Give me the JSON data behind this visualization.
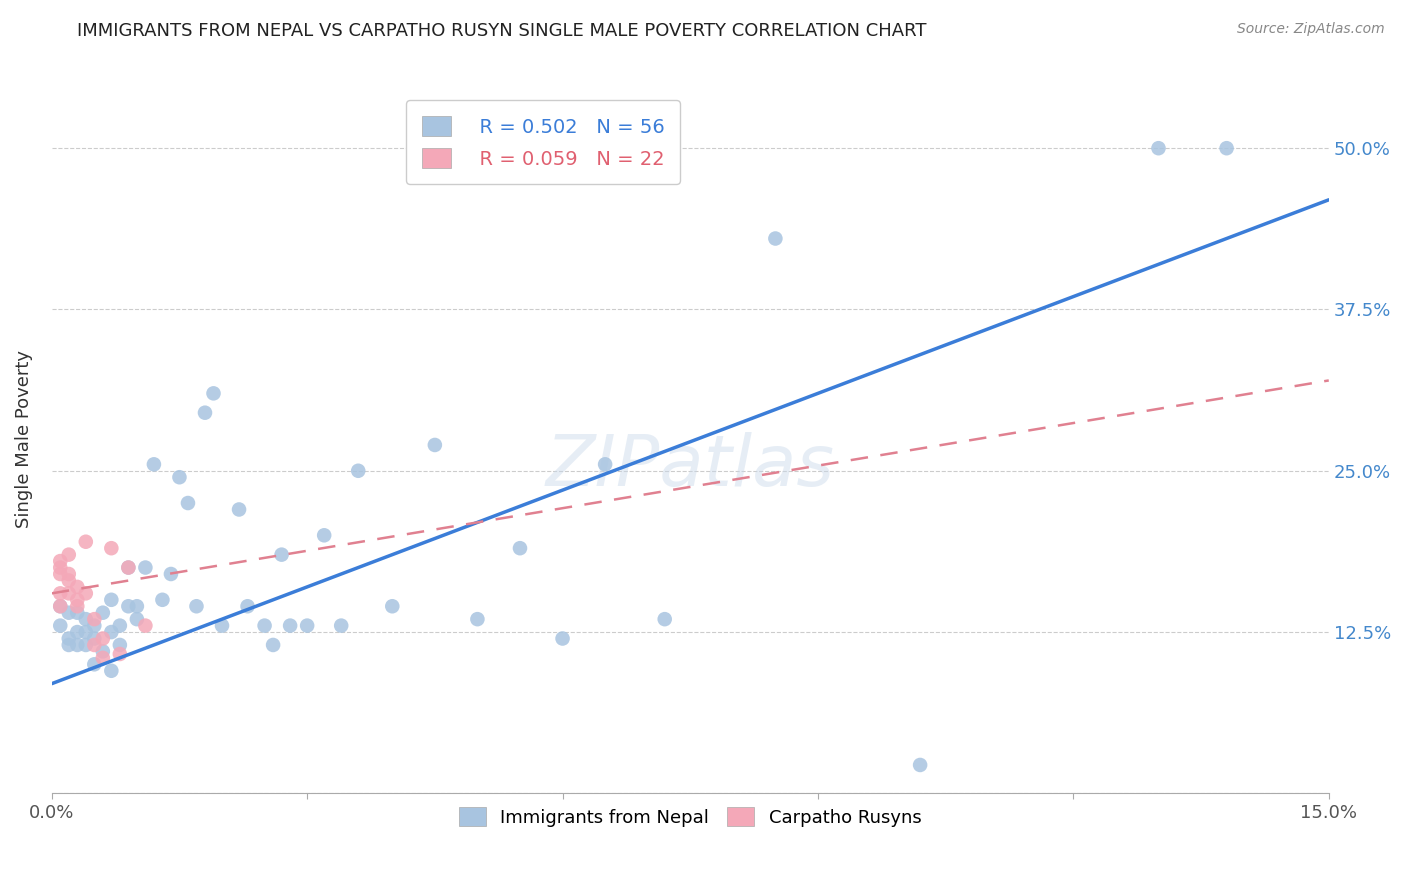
{
  "title": "IMMIGRANTS FROM NEPAL VS CARPATHO RUSYN SINGLE MALE POVERTY CORRELATION CHART",
  "source": "Source: ZipAtlas.com",
  "ylabel": "Single Male Poverty",
  "xmin": 0.0,
  "xmax": 0.15,
  "ymin": 0.0,
  "ymax": 0.55,
  "x_ticks": [
    0.0,
    0.03,
    0.06,
    0.09,
    0.12,
    0.15
  ],
  "y_ticks": [
    0.0,
    0.125,
    0.25,
    0.375,
    0.5
  ],
  "y_tick_labels_right": [
    "",
    "12.5%",
    "25.0%",
    "37.5%",
    "50.0%"
  ],
  "nepal_R": 0.502,
  "nepal_N": 56,
  "rusyn_R": 0.059,
  "rusyn_N": 22,
  "nepal_color": "#a8c4e0",
  "rusyn_color": "#f4a8b8",
  "nepal_line_color": "#3b7dd8",
  "rusyn_line_color": "#e08090",
  "nepal_line_x0": 0.0,
  "nepal_line_y0": 0.085,
  "nepal_line_x1": 0.15,
  "nepal_line_y1": 0.46,
  "rusyn_line_x0": 0.0,
  "rusyn_line_y0": 0.155,
  "rusyn_line_x1": 0.15,
  "rusyn_line_y1": 0.32,
  "nepal_x": [
    0.001,
    0.001,
    0.002,
    0.002,
    0.002,
    0.003,
    0.003,
    0.003,
    0.004,
    0.004,
    0.004,
    0.005,
    0.005,
    0.005,
    0.006,
    0.006,
    0.007,
    0.007,
    0.007,
    0.008,
    0.008,
    0.009,
    0.009,
    0.01,
    0.01,
    0.011,
    0.012,
    0.013,
    0.014,
    0.015,
    0.016,
    0.017,
    0.018,
    0.019,
    0.02,
    0.022,
    0.023,
    0.025,
    0.026,
    0.027,
    0.028,
    0.03,
    0.032,
    0.034,
    0.036,
    0.04,
    0.045,
    0.05,
    0.055,
    0.06,
    0.065,
    0.072,
    0.085,
    0.102,
    0.13,
    0.138
  ],
  "nepal_y": [
    0.13,
    0.145,
    0.12,
    0.115,
    0.14,
    0.115,
    0.125,
    0.14,
    0.125,
    0.115,
    0.135,
    0.1,
    0.12,
    0.13,
    0.11,
    0.14,
    0.095,
    0.125,
    0.15,
    0.115,
    0.13,
    0.145,
    0.175,
    0.135,
    0.145,
    0.175,
    0.255,
    0.15,
    0.17,
    0.245,
    0.225,
    0.145,
    0.295,
    0.31,
    0.13,
    0.22,
    0.145,
    0.13,
    0.115,
    0.185,
    0.13,
    0.13,
    0.2,
    0.13,
    0.25,
    0.145,
    0.27,
    0.135,
    0.19,
    0.12,
    0.255,
    0.135,
    0.43,
    0.022,
    0.5,
    0.5
  ],
  "rusyn_x": [
    0.001,
    0.001,
    0.001,
    0.001,
    0.001,
    0.002,
    0.002,
    0.002,
    0.002,
    0.003,
    0.003,
    0.003,
    0.004,
    0.004,
    0.005,
    0.005,
    0.006,
    0.006,
    0.007,
    0.008,
    0.009,
    0.011
  ],
  "rusyn_y": [
    0.145,
    0.155,
    0.17,
    0.175,
    0.18,
    0.155,
    0.165,
    0.17,
    0.185,
    0.145,
    0.15,
    0.16,
    0.155,
    0.195,
    0.135,
    0.115,
    0.105,
    0.12,
    0.19,
    0.108,
    0.175,
    0.13
  ]
}
